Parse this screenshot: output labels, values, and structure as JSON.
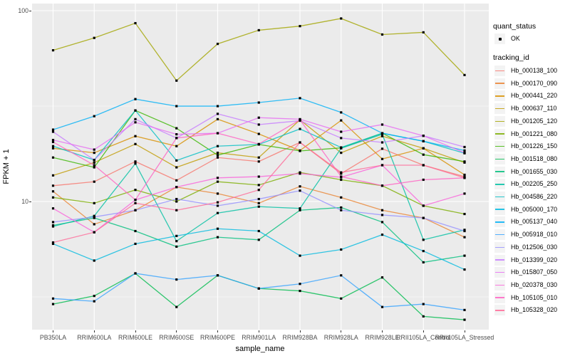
{
  "figure": {
    "background": "#FFFFFF",
    "panel_background": "#EBEBEB",
    "grid_color": "#FFFFFF",
    "axis_text_color": "#4D4D4D",
    "marker_color": "#000000",
    "line_opacity": 0.8
  },
  "chart_data": {
    "type": "line",
    "title": "",
    "xlabel": "sample_name",
    "ylabel": "FPKM + 1",
    "y_scale": "log10",
    "ylim": [
      2.1,
      110
    ],
    "grid": true,
    "legend_position": "right",
    "y_ticks": [
      {
        "label": "100",
        "value": 100
      },
      {
        "label": "10",
        "value": 10
      }
    ],
    "y_minor_values": [
      3.1623,
      31.623
    ],
    "categories": [
      "PB350LA",
      "RRIM600LA",
      "RRIM600LE",
      "RRIM600SE",
      "RRIM600PE",
      "RRIM901LA",
      "RRIM928BA",
      "RRIM928LA",
      "RRIM928LE",
      "RRII105LA_Control",
      "RRII105LA_Stressed"
    ],
    "legend": {
      "quant_title": "quant_status",
      "quant_entries": [
        {
          "label": "OK",
          "marker": "point"
        }
      ],
      "series_title": "tracking_id"
    },
    "series": [
      {
        "name": "Hb_000138_100",
        "color": "#F8766D",
        "values": [
          12.1,
          12.7,
          16.2,
          12.9,
          17.0,
          16.2,
          20.4,
          14.0,
          18.9,
          15.5,
          13.5
        ]
      },
      {
        "name": "Hb_000170_090",
        "color": "#EA8331",
        "values": [
          11.3,
          7.6,
          9.0,
          11.9,
          11.0,
          9.8,
          12.0,
          10.5,
          9.0,
          8.2,
          6.5
        ]
      },
      {
        "name": "Hb_000441_220",
        "color": "#D89000",
        "values": [
          19.0,
          18.0,
          22.0,
          19.5,
          27.0,
          22.6,
          18.5,
          26.6,
          16.7,
          19.0,
          13.8
        ]
      },
      {
        "name": "Hb_000637_110",
        "color": "#C09B00",
        "values": [
          13.7,
          16.0,
          20.0,
          15.1,
          18.0,
          17.0,
          26.8,
          18.0,
          22.0,
          19.0,
          16.0
        ]
      },
      {
        "name": "Hb_001205_120",
        "color": "#A3A500",
        "values": [
          62,
          72,
          86,
          43,
          67,
          79,
          83,
          91,
          75,
          77,
          46
        ]
      },
      {
        "name": "Hb_001221_080",
        "color": "#7CAE00",
        "values": [
          10.5,
          9.8,
          11.5,
          10.0,
          12.7,
          12.2,
          14.2,
          13.0,
          12.1,
          9.5,
          8.6
        ]
      },
      {
        "name": "Hb_001226_150",
        "color": "#39B600",
        "values": [
          17.0,
          15.1,
          30.0,
          24.2,
          17.5,
          19.9,
          18.4,
          19.1,
          22.8,
          17.6,
          16.2
        ]
      },
      {
        "name": "Hb_001518_080",
        "color": "#00BB4E",
        "values": [
          2.9,
          3.2,
          4.2,
          2.8,
          4.1,
          3.5,
          3.4,
          3.1,
          4.0,
          2.5,
          2.4
        ]
      },
      {
        "name": "Hb_001655_030",
        "color": "#00BF7D",
        "values": [
          7.5,
          8.2,
          7.0,
          5.8,
          6.5,
          6.3,
          9.0,
          9.3,
          7.8,
          4.8,
          5.2
        ]
      },
      {
        "name": "Hb_002205_250",
        "color": "#00C1A3",
        "values": [
          7.4,
          8.4,
          15.8,
          6.2,
          8.7,
          9.4,
          9.2,
          19.0,
          22.5,
          6.3,
          7.1
        ]
      },
      {
        "name": "Hb_004586_220",
        "color": "#00BFC4",
        "values": [
          19.5,
          16.5,
          30.0,
          16.4,
          19.5,
          19.9,
          24.0,
          19.2,
          22.8,
          20.7,
          17.9
        ]
      },
      {
        "name": "Hb_005000_170",
        "color": "#00BAE0",
        "values": [
          6.0,
          4.9,
          6.0,
          6.6,
          7.2,
          7.0,
          5.2,
          5.6,
          6.7,
          5.5,
          4.4
        ]
      },
      {
        "name": "Hb_005137_040",
        "color": "#00B0F6",
        "values": [
          23.8,
          28.0,
          34.4,
          31.6,
          31.6,
          33.0,
          34.8,
          29.3,
          22.8,
          20.7,
          18.5
        ]
      },
      {
        "name": "Hb_005918_010",
        "color": "#35A2FF",
        "values": [
          3.1,
          3.0,
          4.2,
          3.9,
          4.1,
          3.5,
          3.7,
          4.1,
          2.8,
          2.9,
          2.7
        ]
      },
      {
        "name": "Hb_012506_030",
        "color": "#9590FF",
        "values": [
          7.8,
          8.3,
          9.0,
          10.3,
          9.5,
          10.3,
          11.4,
          9.0,
          8.5,
          8.2,
          7.0
        ]
      },
      {
        "name": "Hb_013399_020",
        "color": "#C77CFF",
        "values": [
          23.2,
          16.5,
          27.0,
          21.5,
          28.8,
          25.3,
          26.5,
          21.5,
          20.4,
          22.1,
          19.3
        ]
      },
      {
        "name": "Hb_015807_050",
        "color": "#E76BF3",
        "values": [
          21.0,
          18.7,
          26.0,
          22.5,
          22.8,
          27.5,
          27.0,
          23.2,
          25.3,
          22.1,
          18.0
        ]
      },
      {
        "name": "Hb_020378_030",
        "color": "#FA62DB",
        "values": [
          9.2,
          6.9,
          10.2,
          11.9,
          13.3,
          13.5,
          14.0,
          13.4,
          15.5,
          9.5,
          11.0
        ]
      },
      {
        "name": "Hb_105105_010",
        "color": "#FF61C3",
        "values": [
          20.5,
          15.5,
          10.2,
          21.5,
          22.8,
          20.0,
          26.8,
          13.5,
          12.1,
          13.0,
          13.3
        ]
      },
      {
        "name": "Hb_105328_020",
        "color": "#FF6A98",
        "values": [
          6.1,
          6.9,
          9.8,
          9.0,
          9.9,
          11.5,
          20.4,
          14.2,
          15.5,
          15.5,
          13.3
        ]
      }
    ]
  }
}
